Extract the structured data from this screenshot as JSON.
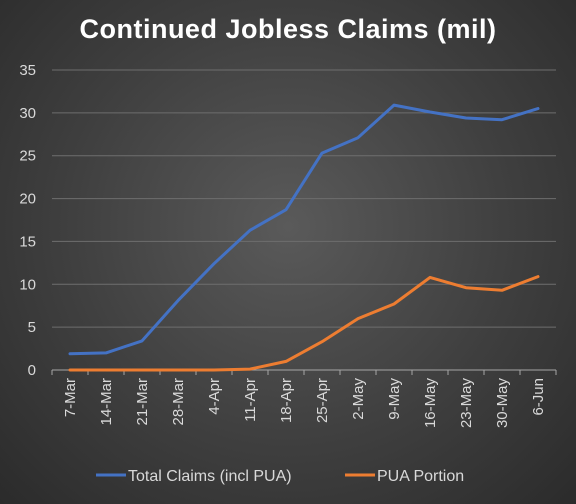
{
  "chart_data": {
    "type": "line",
    "title": "Continued Jobless Claims (mil)",
    "xlabel": "",
    "ylabel": "",
    "categories": [
      "7-Mar",
      "14-Mar",
      "21-Mar",
      "28-Mar",
      "4-Apr",
      "11-Apr",
      "18-Apr",
      "25-Apr",
      "2-May",
      "9-May",
      "16-May",
      "23-May",
      "30-May",
      "6-Jun"
    ],
    "ylim": [
      0,
      35
    ],
    "yticks": [
      0,
      5,
      10,
      15,
      20,
      25,
      30,
      35
    ],
    "grid": true,
    "legend_position": "bottom",
    "series": [
      {
        "name": "Total Claims (incl PUA)",
        "color": "#4472C4",
        "values": [
          1.9,
          2.0,
          3.4,
          8.1,
          12.4,
          16.3,
          18.7,
          25.3,
          27.1,
          30.9,
          30.1,
          29.4,
          29.2,
          30.5
        ]
      },
      {
        "name": "PUA Portion",
        "color": "#ED7D31",
        "values": [
          0,
          0,
          0,
          0,
          0,
          0.1,
          1.0,
          3.3,
          6.0,
          7.7,
          10.8,
          9.6,
          9.3,
          10.9
        ]
      }
    ]
  }
}
